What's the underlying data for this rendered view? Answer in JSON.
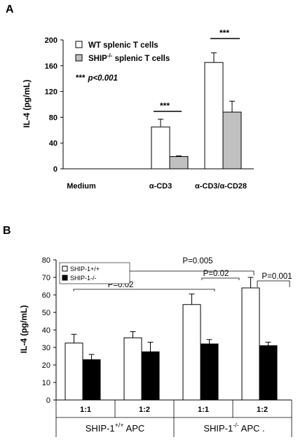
{
  "figure": {
    "panel_a_letter": "A",
    "panel_b_letter": "B"
  },
  "chart_data": [
    {
      "type": "bar",
      "panel": "A",
      "ylabel": "IL-4 (pg/mL)",
      "ylim": [
        0,
        200
      ],
      "yticks": [
        "0",
        "40",
        "80",
        "120",
        "160",
        "200"
      ],
      "categories": [
        "Medium",
        "α-CD3",
        "α-CD3/α-CD28"
      ],
      "series": [
        {
          "name": "WT splenic T cells",
          "values": [
            0,
            65,
            165
          ],
          "errors": [
            0,
            12,
            15
          ],
          "color": "#ffffff"
        },
        {
          "name": "SHIP-/- splenic T cells",
          "values": [
            0,
            19,
            88
          ],
          "errors": [
            0,
            1,
            17
          ],
          "color": "#c0c0c0"
        }
      ],
      "legend": [
        "WT splenic T cells",
        "SHIP",
        "-/-",
        " splenic T cells"
      ],
      "annotations": {
        "stars_note": "***",
        "p_note": "p<0.001",
        "sig_cd3": "***",
        "sig_cd28": "***"
      },
      "legend_position": "top-left"
    },
    {
      "type": "bar",
      "panel": "B",
      "ylabel": "IL-4 (pg/mL)",
      "ylim": [
        0,
        80
      ],
      "yticks": [
        "0",
        "10",
        "20",
        "30",
        "40",
        "50",
        "60",
        "70",
        "80"
      ],
      "categories": [
        "1:1",
        "1:2",
        "1:1",
        "1:2"
      ],
      "groups": [
        {
          "parts": [
            "SHIP-1",
            "+/+",
            " APC"
          ]
        },
        {
          "parts": [
            "SHIP-1",
            "-/-",
            " APC ."
          ]
        }
      ],
      "series": [
        {
          "name": "SHIP-1+/+",
          "values": [
            32.5,
            35.5,
            54.5,
            64
          ],
          "errors": [
            5,
            3.5,
            6,
            6
          ],
          "color": "#ffffff"
        },
        {
          "name": "SHIP-1-/-",
          "values": [
            23,
            27.5,
            32,
            31
          ],
          "errors": [
            3,
            5.5,
            2.5,
            2
          ],
          "color": "#000000"
        }
      ],
      "legend": [
        "SHIP-1+/+",
        "SHIP-1-/-"
      ],
      "pvalues": [
        "P=0.02",
        "P=0.005",
        "P=0.02",
        "P=0.001"
      ],
      "legend_position": "top-left"
    }
  ]
}
